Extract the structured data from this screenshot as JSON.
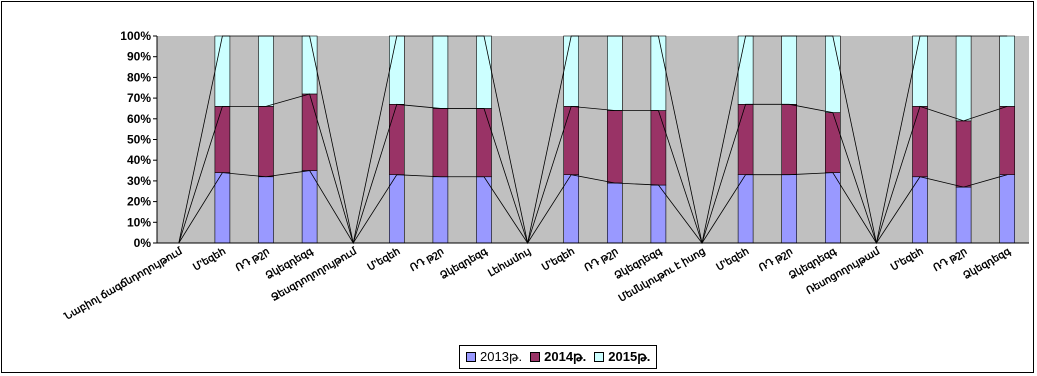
{
  "chart_data": {
    "type": "bar",
    "stacked": "percent",
    "categories": [
      "Նաբիոլ ճագճնդողույթում",
      "Մ'եզեհ",
      "ՌԴ թշր",
      "Ձկեզդեզգ",
      "Ջեսզդողողույթում",
      "Մ'եզեհ",
      "ՌԴ թշր",
      "Ձկեզդեզգ",
      "Լեհամույ",
      "Մ'եզեհ",
      "ՌԴ թշր",
      "Ձկեզդեզգ",
      "Մեմնկութու է իսոց",
      "Մ'եզեհ",
      "ՌԴ թշր",
      "Ձկեզդեզգ",
      "Ռեսոցողույթամ",
      "Մ'եզեհ",
      "ՌԴ թշր",
      "Ձկեզդեզգ"
    ],
    "series": [
      {
        "name": "2013թ.",
        "values": [
          0,
          34,
          32,
          35,
          0,
          33,
          32,
          32,
          0,
          33,
          29,
          28,
          0,
          33,
          33,
          34,
          0,
          32,
          27,
          33
        ]
      },
      {
        "name": "2014թ.",
        "values": [
          0,
          32,
          34,
          37,
          0,
          34,
          33,
          33,
          0,
          33,
          35,
          36,
          0,
          34,
          34,
          29,
          0,
          34,
          32,
          33
        ]
      },
      {
        "name": "2015թ.",
        "values": [
          0,
          34,
          34,
          28,
          0,
          33,
          35,
          35,
          0,
          34,
          36,
          36,
          0,
          33,
          33,
          37,
          0,
          34,
          41,
          34
        ]
      }
    ],
    "colors": [
      "#9999ff",
      "#993366",
      "#ccffff"
    ],
    "yticks": [
      "0%",
      "10%",
      "20%",
      "30%",
      "40%",
      "50%",
      "60%",
      "70%",
      "80%",
      "90%",
      "100%"
    ],
    "ylim": [
      0,
      100
    ],
    "grid": false,
    "legend_position": "bottom",
    "title": "",
    "xlabel": "",
    "ylabel": ""
  },
  "legend": {
    "items": [
      {
        "label": "2013թ.",
        "bold": false
      },
      {
        "label": "2014թ.",
        "bold": true
      },
      {
        "label": "2015թ.",
        "bold": true
      }
    ]
  }
}
